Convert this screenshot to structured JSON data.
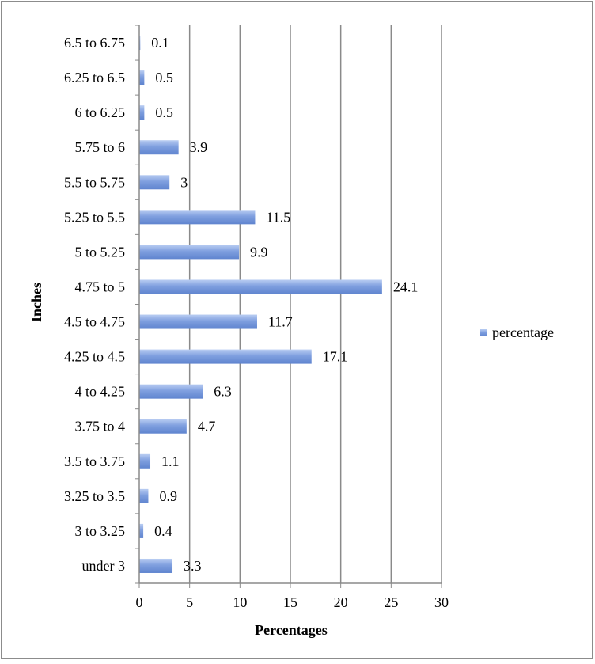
{
  "chart_data": {
    "type": "bar",
    "orientation": "horizontal",
    "title": "",
    "xlabel": "Percentages",
    "ylabel": "Inches",
    "xlim": [
      0,
      30
    ],
    "xticks": [
      "0",
      "5",
      "10",
      "15",
      "20",
      "25",
      "30"
    ],
    "categories": [
      "under 3",
      "3 to 3.25",
      "3.25 to 3.5",
      "3.5 to 3.75",
      "3.75 to 4",
      "4 to 4.25",
      "4.25 to 4.5",
      "4.5 to 4.75",
      "4.75 to 5",
      "5 to 5.25",
      "5.25 to 5.5",
      "5.5 to 5.75",
      "5.75 to 6",
      "6 to 6.25",
      "6.25 to 6.5",
      "6.5 to 6.75"
    ],
    "series": [
      {
        "name": "percentage",
        "values": [
          3.3,
          0.4,
          0.9,
          1.1,
          4.7,
          6.3,
          17.1,
          11.7,
          24.1,
          9.9,
          11.5,
          3,
          3.9,
          0.5,
          0.5,
          0.1
        ],
        "labels": [
          "3.3",
          "0.4",
          "0.9",
          "1.1",
          "4.7",
          "6.3",
          "17.1",
          "11.7",
          "24.1",
          "9.9",
          "11.5",
          "3",
          "3.9",
          "0.5",
          "0.5",
          "0.1"
        ],
        "color": "#7f9fd9"
      }
    ],
    "grid": true,
    "legend": "right"
  }
}
